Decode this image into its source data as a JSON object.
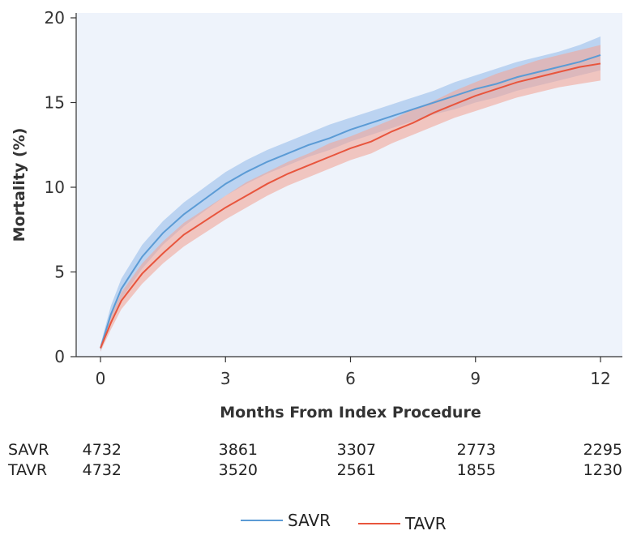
{
  "chart_data": {
    "type": "line",
    "title": "",
    "xlabel": "Months From Index Procedure",
    "ylabel": "Mortality (%)",
    "xlim": [
      0,
      12
    ],
    "ylim": [
      0,
      20
    ],
    "xticks": [
      "0",
      "3",
      "6",
      "9",
      "12"
    ],
    "yticks": [
      "0",
      "5",
      "10",
      "15",
      "20"
    ],
    "grid": false,
    "background": "#eef3fb",
    "series": [
      {
        "name": "SAVR",
        "color": "#5b9bd5",
        "band_color": "#a9c8ee",
        "x": [
          0,
          0.25,
          0.5,
          1,
          1.5,
          2,
          2.5,
          3,
          3.5,
          4,
          4.5,
          5,
          5.5,
          6,
          6.5,
          7,
          7.5,
          8,
          8.5,
          9,
          9.5,
          10,
          10.5,
          11,
          11.5,
          12
        ],
        "y": [
          0.5,
          2.5,
          4.0,
          5.9,
          7.3,
          8.4,
          9.3,
          10.2,
          10.9,
          11.5,
          12.0,
          12.5,
          12.9,
          13.4,
          13.8,
          14.2,
          14.6,
          15.0,
          15.4,
          15.8,
          16.1,
          16.5,
          16.8,
          17.1,
          17.4,
          17.8
        ],
        "lower": [
          0.3,
          2.0,
          3.4,
          5.2,
          6.6,
          7.7,
          8.6,
          9.5,
          10.2,
          10.8,
          11.3,
          11.8,
          12.2,
          12.7,
          13.1,
          13.5,
          13.9,
          14.3,
          14.6,
          15.0,
          15.3,
          15.7,
          16.0,
          16.3,
          16.6,
          16.9
        ],
        "upper": [
          0.7,
          3.0,
          4.6,
          6.6,
          8.0,
          9.1,
          10.0,
          10.9,
          11.6,
          12.2,
          12.7,
          13.2,
          13.7,
          14.1,
          14.5,
          14.9,
          15.3,
          15.7,
          16.2,
          16.6,
          17.0,
          17.4,
          17.7,
          18.0,
          18.4,
          18.9
        ]
      },
      {
        "name": "TAVR",
        "color": "#e8553d",
        "band_color": "#f2a79a",
        "x": [
          0,
          0.25,
          0.5,
          1,
          1.5,
          2,
          2.5,
          3,
          3.5,
          4,
          4.5,
          5,
          5.5,
          6,
          6.5,
          7,
          7.5,
          8,
          8.5,
          9,
          9.5,
          10,
          10.5,
          11,
          11.5,
          12
        ],
        "y": [
          0.5,
          2.0,
          3.3,
          4.9,
          6.1,
          7.2,
          8.0,
          8.8,
          9.5,
          10.2,
          10.8,
          11.3,
          11.8,
          12.3,
          12.7,
          13.3,
          13.8,
          14.4,
          14.9,
          15.4,
          15.8,
          16.2,
          16.5,
          16.8,
          17.1,
          17.3
        ],
        "lower": [
          0.3,
          1.6,
          2.8,
          4.3,
          5.5,
          6.5,
          7.3,
          8.1,
          8.8,
          9.5,
          10.1,
          10.6,
          11.1,
          11.6,
          12.0,
          12.6,
          13.1,
          13.6,
          14.1,
          14.5,
          14.9,
          15.3,
          15.6,
          15.9,
          16.1,
          16.3
        ],
        "upper": [
          0.7,
          2.4,
          3.8,
          5.5,
          6.8,
          7.9,
          8.7,
          9.5,
          10.3,
          10.9,
          11.5,
          12.0,
          12.6,
          13.0,
          13.5,
          14.0,
          14.6,
          15.1,
          15.7,
          16.2,
          16.7,
          17.1,
          17.5,
          17.8,
          18.1,
          18.4
        ]
      }
    ],
    "number_at_risk": {
      "times": [
        0,
        3,
        6,
        9,
        12
      ],
      "rows": [
        {
          "name": "SAVR",
          "counts": [
            "4732",
            "3861",
            "3307",
            "2773",
            "2295"
          ]
        },
        {
          "name": "TAVR",
          "counts": [
            "4732",
            "3520",
            "2561",
            "1855",
            "1230"
          ]
        }
      ]
    },
    "legend": {
      "position": "bottom-center",
      "items": [
        "SAVR",
        "TAVR"
      ]
    }
  }
}
